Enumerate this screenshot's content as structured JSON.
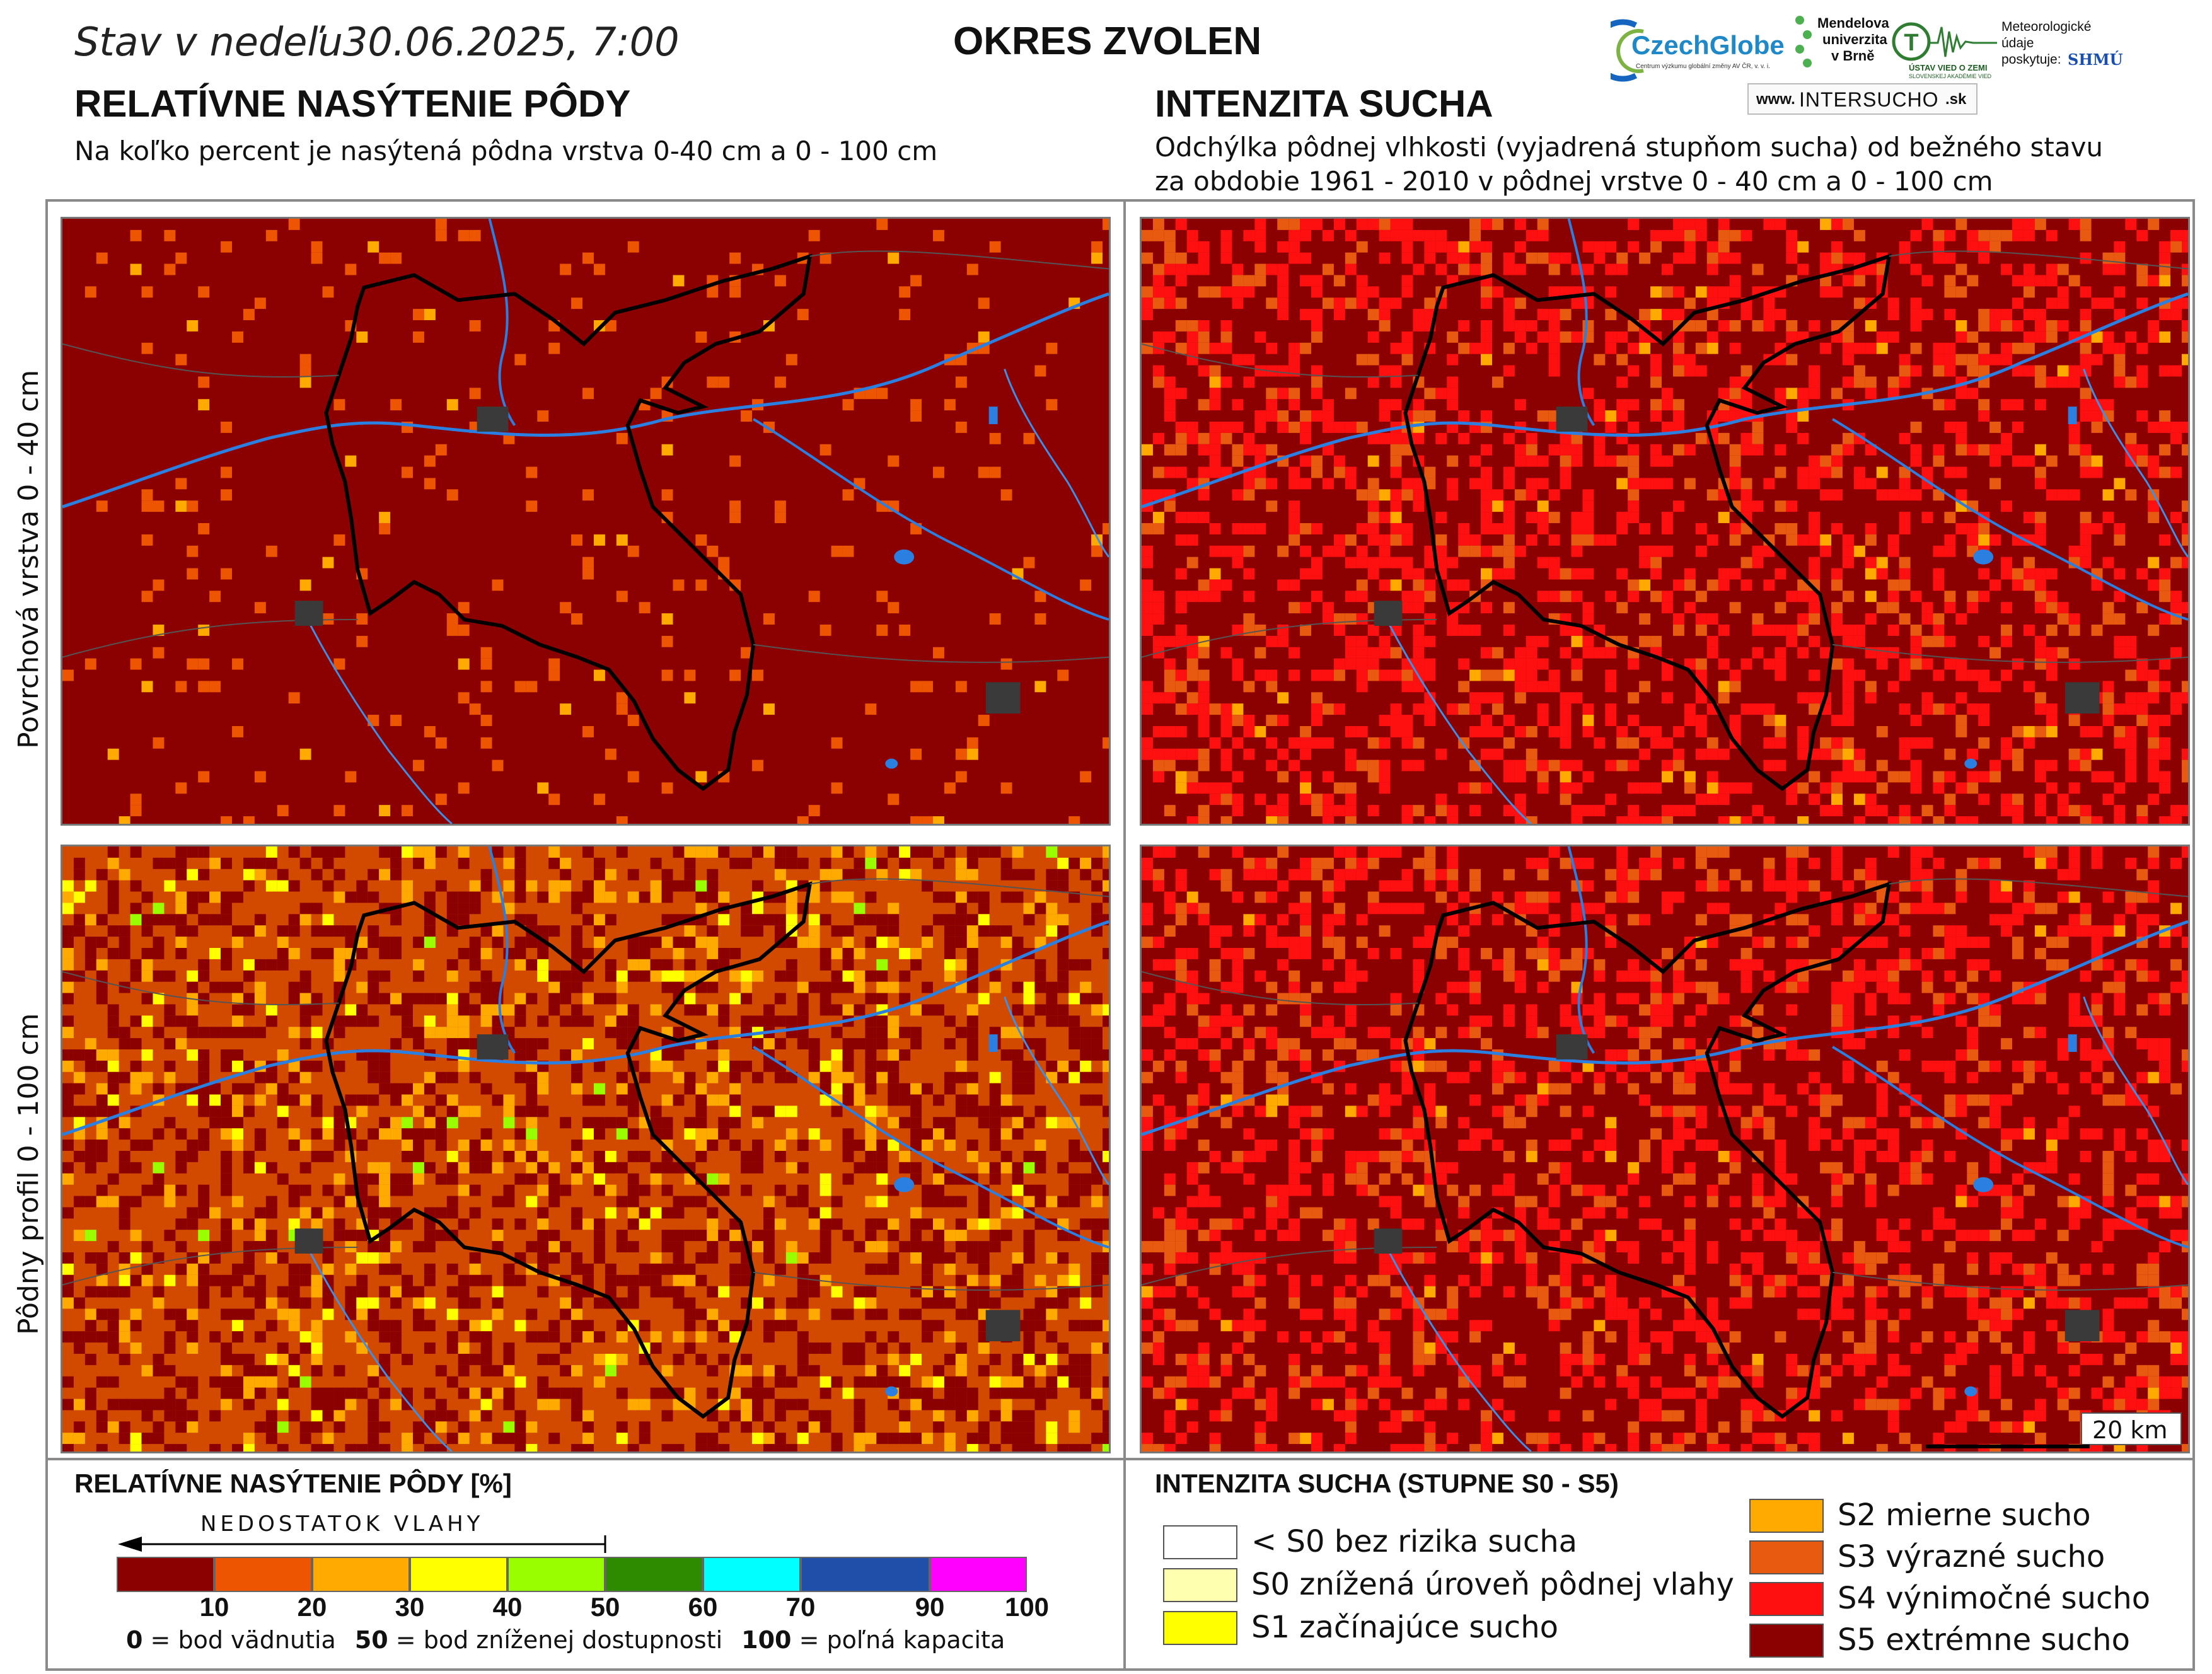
{
  "header": {
    "date_prefix": "Stav v nedeľu",
    "date": "30.06.2025, 7:00",
    "district": "OKRES  ZVOLEN"
  },
  "left_column": {
    "title": "RELATÍVNE NASÝTENIE PÔDY",
    "subtitle": "Na koľko percent je nasýtená pôdna vrstva 0-40 cm a 0 - 100 cm"
  },
  "right_column": {
    "title": "INTENZITA SUCHA",
    "subtitle_line1": "Odchýlka pôdnej vlhkosti (vyjadrená stupňom sucha) od bežného stavu",
    "subtitle_line2": "za obdobie 1961 - 2010 v pôdnej vrstve 0 - 40 cm a 0 - 100 cm"
  },
  "row_labels": {
    "top": "Povrchová vrstva 0 - 40 cm",
    "bottom": "Pôdny profil 0 - 100 cm"
  },
  "logos": {
    "czechglobe": "CzechGlobe",
    "czechglobe_sub": "Centrum výzkumu globální změny AV ČR, v. v. i.",
    "mendel_1": "Mendelova",
    "mendel_2": "univerzita",
    "mendel_3": "v Brně",
    "uvz": "ÚSTAV VIED O ZEMI",
    "uvz_sub": "SLOVENSKEJ AKADÉMIE VIED",
    "meteo_1": "Meteorologické",
    "meteo_2": "údaje",
    "meteo_3": "poskytuje:",
    "shmu": "SHMÚ",
    "intersucho_prefix": "www.",
    "intersucho_main": "INTERSUCHO",
    "intersucho_suffix": ".sk"
  },
  "scale_bar": "20 km",
  "saturation_legend": {
    "title": "RELATÍVNE NASÝTENIE PÔDY [%]",
    "arrow_label": "NEDOSTATOK VLAHY",
    "colors": [
      "#8b0000",
      "#ee5500",
      "#ffaa00",
      "#ffff00",
      "#99ff00",
      "#2e8b00",
      "#00ffff",
      "#1f4fa8",
      "#ff00ff"
    ],
    "ticks": [
      "10",
      "20",
      "30",
      "40",
      "50",
      "60",
      "70",
      "90",
      "100"
    ],
    "note_0_num": "0",
    "note_0_text": " = bod vädnutia",
    "note_50_num": "50",
    "note_50_text": " = bod zníženej dostupnosti",
    "note_100_num": "100",
    "note_100_text": " = poľná kapacita"
  },
  "drought_legend": {
    "title": "INTENZITA SUCHA (STUPNE S0 - S5)",
    "items": [
      {
        "label": "< S0 bez rizika sucha",
        "color": "#ffffff"
      },
      {
        "label": "S0 znížená úroveň pôdnej vlahy",
        "color": "#ffffb0"
      },
      {
        "label": "S1 začínajúce sucho",
        "color": "#ffff00"
      },
      {
        "label": "S2 mierne sucho",
        "color": "#ffaa00"
      },
      {
        "label": "S3 výrazné sucho",
        "color": "#e85a10"
      },
      {
        "label": "S4 výnimočné sucho",
        "color": "#ff1010"
      },
      {
        "label": "S5 extrémne sucho",
        "color": "#8b0000"
      }
    ]
  }
}
